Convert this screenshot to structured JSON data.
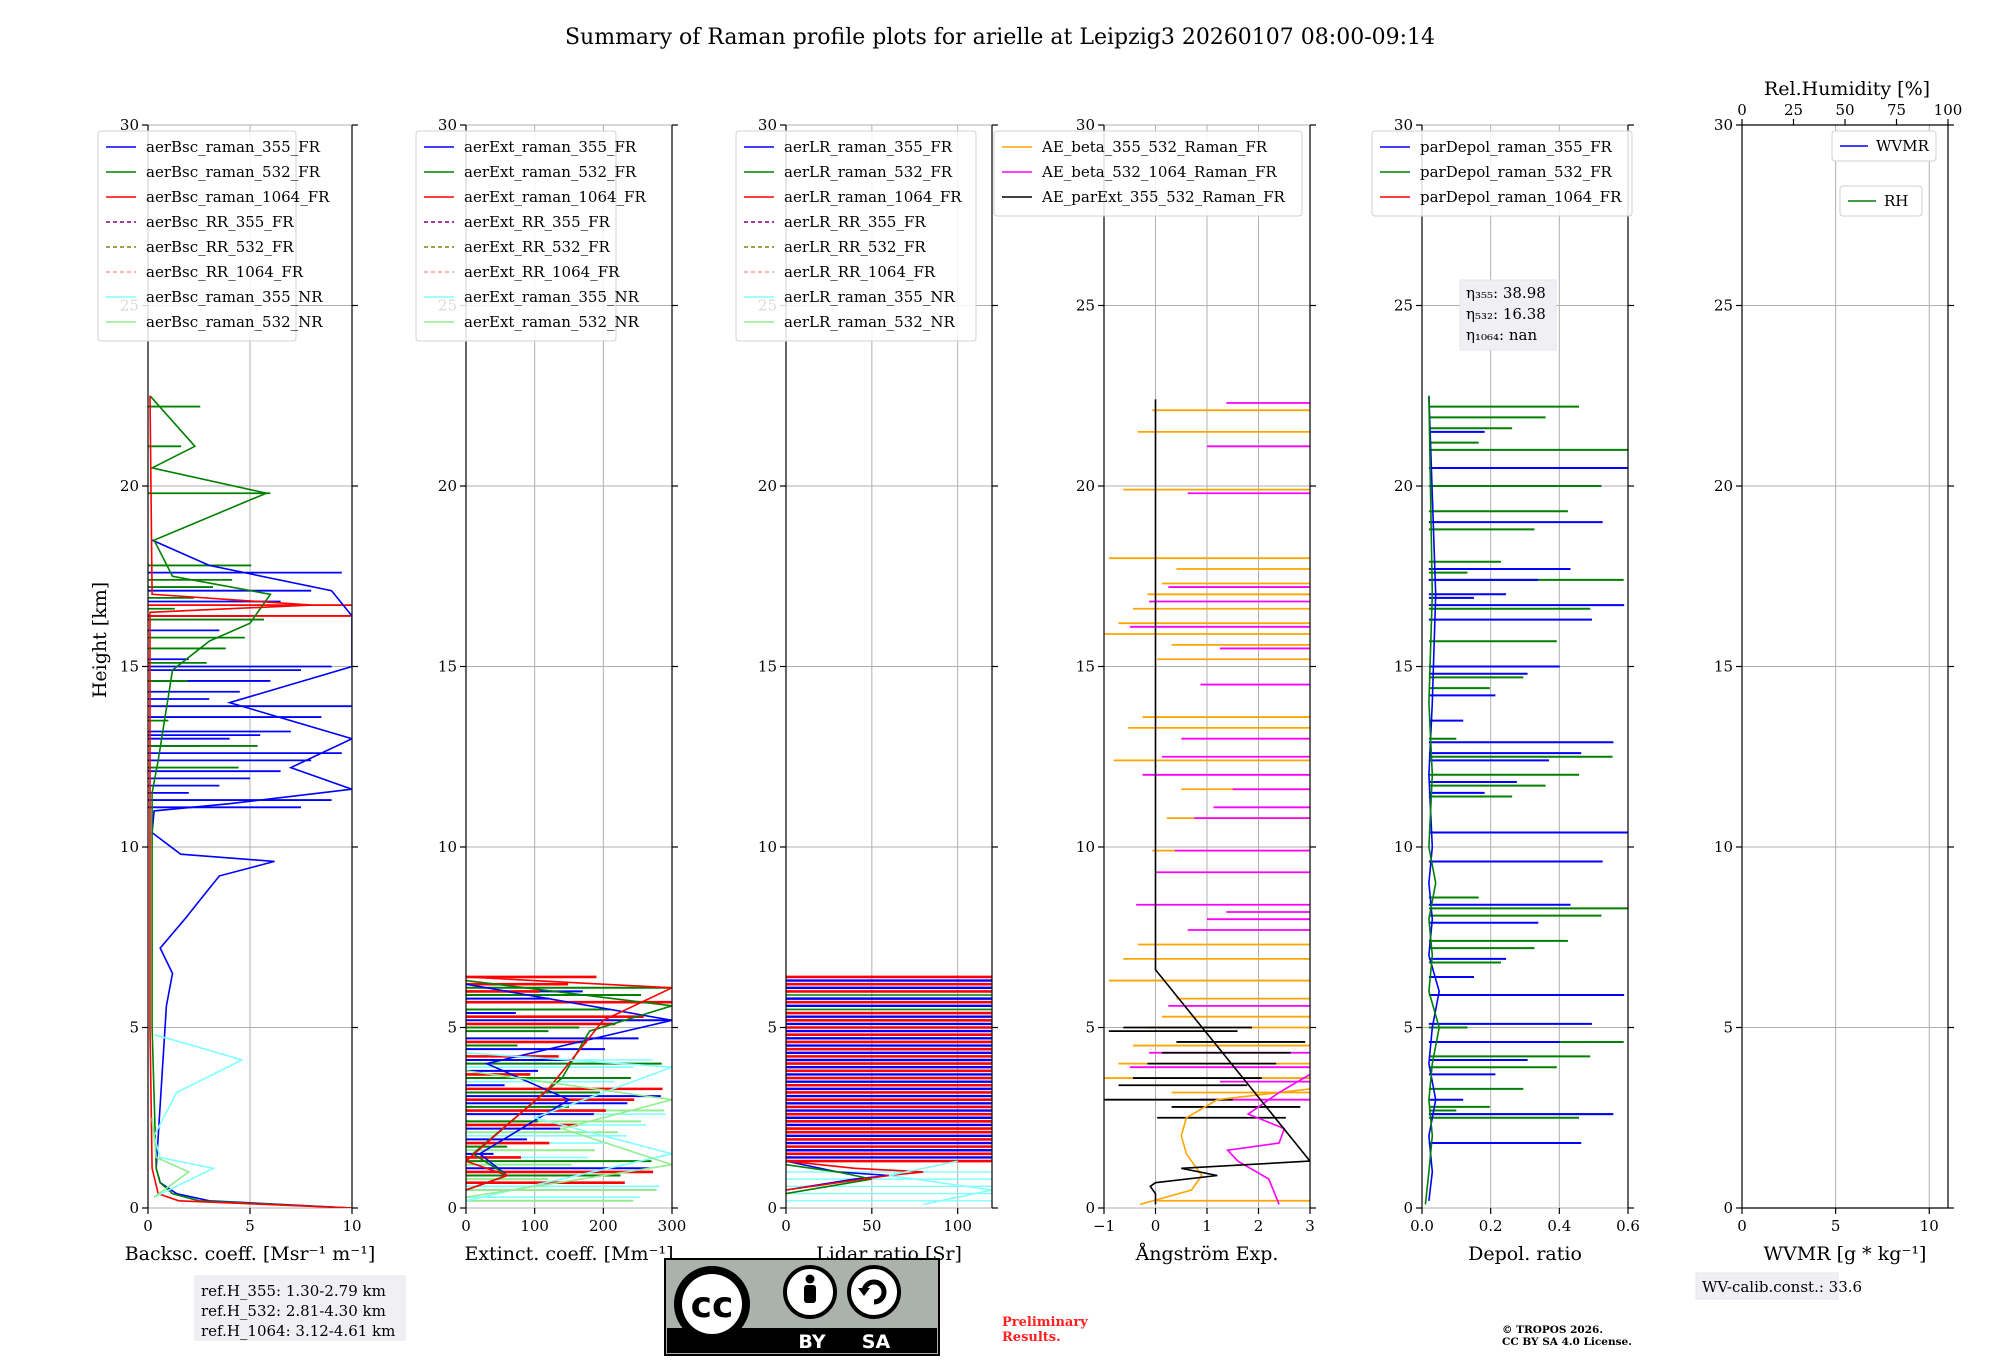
{
  "title": "Summary of Raman profile plots for arielle at Leipzig3 20260107 08:00-09:14",
  "ylabel": "Height [km]",
  "y_ticks": [
    "0",
    "5",
    "10",
    "15",
    "20",
    "25",
    "30"
  ],
  "colors": {
    "blue": "#0000ff",
    "green": "#008000",
    "red": "#ff0000",
    "purple": "#800080",
    "olive": "#808000",
    "salmon": "#ff9999",
    "cyan": "#80ffff",
    "lightgreen": "#90ee90",
    "orange": "#ffa500",
    "magenta": "#ff00ff",
    "black": "#000000"
  },
  "chart_data": [
    {
      "type": "line",
      "panel": "backscatter",
      "xlabel": "Backsc. coeff. [Msr⁻¹ m⁻¹]",
      "xlim": [
        0,
        10
      ],
      "ylim": [
        0,
        30
      ],
      "x_ticks": [
        "0",
        "5",
        "10"
      ],
      "legend": [
        "aerBsc_raman_355_FR",
        "aerBsc_raman_532_FR",
        "aerBsc_raman_1064_FR",
        "aerBsc_RR_355_FR",
        "aerBsc_RR_532_FR",
        "aerBsc_RR_1064_FR",
        "aerBsc_raman_355_NR",
        "aerBsc_raman_532_NR"
      ],
      "series": [
        {
          "name": "aerBsc_raman_355_FR",
          "x": [
            10,
            3,
            1.4,
            0.6,
            0.4,
            0.9,
            1.2,
            0.6,
            1.8,
            2.5,
            3.5,
            6.2,
            1.6,
            0.2,
            0.3,
            4,
            10,
            7,
            10,
            4,
            10,
            10,
            9,
            3,
            0.2
          ],
          "y": [
            0,
            0.2,
            0.4,
            0.7,
            1.1,
            5.6,
            6.5,
            7.2,
            8.0,
            8.5,
            9.2,
            9.6,
            9.8,
            10.4,
            11.0,
            11.2,
            11.6,
            12.2,
            13.0,
            14.0,
            15.0,
            16.4,
            17.1,
            17.8,
            18.5
          ]
        },
        {
          "name": "aerBsc_raman_532_FR",
          "x": [
            10,
            2.5,
            1.2,
            0.6,
            0.4,
            0.2,
            0.2,
            0.5,
            1.2,
            3,
            5,
            6,
            1.2,
            0.3,
            5.8,
            0.2,
            2.3,
            0.1
          ],
          "y": [
            0,
            0.2,
            0.4,
            0.7,
            1.1,
            5,
            11.5,
            12.4,
            14.9,
            15.7,
            16.2,
            17.0,
            17.5,
            18.5,
            19.8,
            20.5,
            21.1,
            22.5
          ]
        },
        {
          "name": "aerBsc_raman_1064_FR",
          "x": [
            10,
            1.5,
            0.5,
            0.2,
            0.1,
            0.1,
            8,
            0.2,
            0.1
          ],
          "y": [
            0,
            0.2,
            0.4,
            1.1,
            5,
            16.5,
            16.7,
            17.0,
            22.5
          ]
        },
        {
          "name": "aerBsc_raman_355_NR",
          "x": [
            0.3,
            3.2,
            0.6,
            0.3,
            1.4,
            4.6,
            2.2,
            0.3
          ],
          "y": [
            0.3,
            1.1,
            1.4,
            2.0,
            3.2,
            4.1,
            4.5,
            4.8
          ]
        },
        {
          "name": "aerBsc_raman_532_NR",
          "x": [
            0.3,
            2.0,
            0.4,
            0.2
          ],
          "y": [
            0.3,
            1.0,
            1.4,
            2.5
          ]
        }
      ]
    },
    {
      "type": "line",
      "panel": "extinction",
      "xlabel": "Extinct. coeff. [Mm⁻¹]",
      "xlim": [
        0,
        300
      ],
      "ylim": [
        0,
        30
      ],
      "x_ticks": [
        "0",
        "100",
        "200",
        "300"
      ],
      "legend": [
        "aerExt_raman_355_FR",
        "aerExt_raman_532_FR",
        "aerExt_raman_1064_FR",
        "aerExt_RR_355_FR",
        "aerExt_RR_532_FR",
        "aerExt_RR_1064_FR",
        "aerExt_raman_355_NR",
        "aerExt_raman_532_NR"
      ],
      "series": [
        {
          "name": "aerExt_raman_355_FR",
          "x": [
            0,
            60,
            20,
            150,
            30,
            300,
            0
          ],
          "y": [
            0.5,
            0.9,
            1.5,
            3.0,
            4.0,
            5.2,
            6.2
          ]
        },
        {
          "name": "aerExt_raman_532_FR",
          "x": [
            0,
            60,
            10,
            140,
            180,
            300,
            0
          ],
          "y": [
            0.5,
            0.9,
            1.5,
            3.6,
            4.9,
            5.6,
            6.3
          ]
        },
        {
          "name": "aerExt_raman_1064_FR",
          "x": [
            0,
            60,
            0,
            120,
            200,
            300,
            0
          ],
          "y": [
            0.5,
            0.9,
            1.3,
            3.3,
            5.2,
            6.1,
            6.4
          ]
        },
        {
          "name": "aerExt_raman_355_NR",
          "x": [
            0,
            300,
            100,
            300,
            0
          ],
          "y": [
            0.2,
            1.5,
            2.5,
            3.9,
            4.3
          ]
        },
        {
          "name": "aerExt_raman_532_NR",
          "x": [
            0,
            300,
            140,
            300,
            0
          ],
          "y": [
            0.3,
            1.2,
            2.2,
            3.0,
            3.8
          ]
        }
      ]
    },
    {
      "type": "line",
      "panel": "lidar_ratio",
      "xlabel": "Lidar ratio [Sr]",
      "xlim": [
        0,
        120
      ],
      "ylim": [
        0,
        30
      ],
      "x_ticks": [
        "0",
        "50",
        "100"
      ],
      "legend": [
        "aerLR_raman_355_FR",
        "aerLR_raman_532_FR",
        "aerLR_raman_1064_FR",
        "aerLR_RR_355_FR",
        "aerLR_RR_532_FR",
        "aerLR_RR_1064_FR",
        "aerLR_raman_355_NR",
        "aerLR_raman_532_NR"
      ],
      "series": [
        {
          "name": "aerLR_raman_355_FR",
          "x": [
            0,
            40,
            60,
            30,
            0
          ],
          "y": [
            0.5,
            0.8,
            0.9,
            1.0,
            1.3
          ]
        },
        {
          "name": "aerLR_raman_532_FR",
          "x": [
            0,
            50,
            30,
            0
          ],
          "y": [
            0.4,
            0.8,
            1.0,
            1.2
          ]
        },
        {
          "name": "aerLR_raman_1064_FR",
          "x": [
            0,
            60,
            80,
            40,
            0
          ],
          "y": [
            0.5,
            0.9,
            1.0,
            1.1,
            1.3
          ]
        },
        {
          "name": "aerLR_raman_355_NR",
          "x": [
            80,
            120,
            60,
            100
          ],
          "y": [
            0.1,
            0.5,
            0.9,
            1.3
          ]
        }
      ]
    },
    {
      "type": "line",
      "panel": "angstrom",
      "xlabel": "Ångström Exp.",
      "xlim": [
        -1,
        3
      ],
      "ylim": [
        0,
        30
      ],
      "x_ticks": [
        "−1",
        "0",
        "1",
        "2",
        "3"
      ],
      "legend": [
        "AE_beta_355_532_Raman_FR",
        "AE_beta_532_1064_Raman_FR",
        "AE_parExt_355_532_Raman_FR"
      ],
      "series": [
        {
          "name": "AE_beta_355_532_Raman_FR",
          "x": [
            -0.3,
            0.7,
            0.9,
            0.6,
            0.5,
            0.6,
            1.2,
            3
          ],
          "y": [
            0.1,
            0.5,
            0.9,
            1.5,
            2.0,
            2.5,
            3.0,
            3.3
          ]
        },
        {
          "name": "AE_beta_532_1064_Raman_FR",
          "x": [
            2.4,
            2.2,
            1.6,
            1.4,
            2.4,
            2.5,
            1.8,
            2.4,
            3
          ],
          "y": [
            0.1,
            0.8,
            1.3,
            1.6,
            1.8,
            2.2,
            2.6,
            3.2,
            3.7
          ]
        },
        {
          "name": "AE_parExt_355_532_Raman_FR",
          "x": [
            0,
            0,
            -0.1,
            0,
            1.2,
            0.5,
            3,
            0,
            0
          ],
          "y": [
            0.1,
            0.4,
            0.6,
            0.7,
            0.9,
            1.1,
            1.3,
            6.6,
            22.4
          ]
        }
      ]
    },
    {
      "type": "line",
      "panel": "depolarization",
      "xlabel": "Depol. ratio",
      "xlim": [
        0,
        0.6
      ],
      "ylim": [
        0,
        30
      ],
      "x_ticks": [
        "0.0",
        "0.2",
        "0.4",
        "0.6"
      ],
      "legend": [
        "parDepol_raman_355_FR",
        "parDepol_raman_532_FR",
        "parDepol_raman_1064_FR"
      ],
      "annotation": [
        "η₃₅₅: 38.98",
        "η₅₃₂: 16.38",
        "η₁₀₆₄: nan"
      ],
      "series": [
        {
          "name": "parDepol_raman_355_FR",
          "x": [
            0.02,
            0.03,
            0.02,
            0.04,
            0.02,
            0.03,
            0.05,
            0.02,
            0.03,
            0.02,
            0.03,
            0.02,
            0.03,
            0.04,
            0.02
          ],
          "y": [
            0.2,
            1.0,
            2.0,
            3.0,
            4.0,
            5.0,
            6.0,
            7.0,
            8.0,
            9.0,
            10.0,
            12.0,
            14.0,
            17.0,
            22.5
          ]
        },
        {
          "name": "parDepol_raman_532_FR",
          "x": [
            0.01,
            0.02,
            0.03,
            0.02,
            0.03,
            0.05,
            0.02,
            0.03,
            0.02,
            0.04,
            0.02,
            0.03,
            0.02,
            0.03,
            0.02
          ],
          "y": [
            0.1,
            1.0,
            2.0,
            3.0,
            4.0,
            5.0,
            6.0,
            7.0,
            8.0,
            9.0,
            10.0,
            12.0,
            14.0,
            17.0,
            22.5
          ]
        }
      ]
    },
    {
      "type": "line",
      "panel": "wvmr",
      "xlabel": "WVMR [g * kg⁻¹]",
      "top_xlabel": "Rel.Humidity [%]",
      "xlim": [
        0,
        11
      ],
      "ylim": [
        0,
        30
      ],
      "x_ticks": [
        "0",
        "5",
        "10"
      ],
      "top_ticks": [
        "0",
        "25",
        "50",
        "75",
        "100"
      ],
      "legend": [
        "WVMR",
        "RH"
      ],
      "series": []
    }
  ],
  "spikes": {
    "bsc_355": [
      11.1,
      11.3,
      11.5,
      11.7,
      11.9,
      12.1,
      12.4,
      12.6,
      12.8,
      13.0,
      13.1,
      13.2,
      13.6,
      13.9,
      14.1,
      14.3,
      14.6,
      14.9,
      15.0,
      15.2,
      16.0,
      16.4,
      16.8,
      17.1,
      17.6
    ],
    "bsc_532": [
      12.2,
      12.8,
      13.5,
      14.6,
      15.1,
      15.5,
      15.8,
      16.3,
      16.6,
      16.9,
      17.2,
      17.4,
      17.8,
      19.8,
      21.1,
      22.2
    ],
    "bsc_1064": [
      16.4,
      16.7
    ],
    "ext_355": [
      0.9,
      1.1,
      1.5,
      1.9,
      2.2,
      2.6,
      2.9,
      3.1,
      3.4,
      3.8,
      4.1,
      4.4,
      4.7,
      5.2,
      5.4,
      5.8,
      6.0
    ],
    "ext_532": [
      0.9,
      1.3,
      1.7,
      2.4,
      2.8,
      3.2,
      3.6,
      4.0,
      4.5,
      4.9,
      5.0,
      5.5,
      5.9,
      6.1,
      6.2
    ],
    "ext_1064": [
      0.7,
      1.0,
      1.4,
      1.8,
      2.3,
      2.7,
      3.0,
      3.3,
      3.7,
      4.2,
      4.6,
      5.1,
      5.3,
      5.7,
      6.0,
      6.2,
      6.4
    ],
    "ext_nr_355": [
      0.3,
      0.6,
      1.0,
      1.4,
      1.8,
      2.0,
      2.3,
      2.6,
      2.9,
      3.2,
      3.5,
      3.9,
      4.1
    ],
    "ext_nr_532": [
      0.2,
      0.5,
      0.8,
      1.2,
      1.6,
      2.1,
      2.4,
      2.7,
      3.0,
      3.3,
      3.6
    ],
    "lr_355": [
      1.4,
      1.6,
      1.8,
      2.0,
      2.3,
      2.5,
      2.7,
      2.9,
      3.1,
      3.3,
      3.5,
      3.7,
      3.9,
      4.1,
      4.3,
      4.5,
      4.7,
      4.9,
      5.1,
      5.3,
      5.6,
      5.8,
      6.1,
      6.3
    ],
    "lr_532": [
      1.5,
      1.7,
      1.9,
      2.1,
      2.4,
      2.6,
      2.8,
      3.0,
      3.2,
      3.4,
      3.6,
      3.8,
      4.0,
      4.2,
      4.4,
      4.6,
      4.8,
      5.0,
      5.2,
      5.5,
      5.9,
      6.2
    ],
    "lr_1064": [
      1.3,
      1.5,
      1.7,
      1.9,
      2.1,
      2.2,
      2.4,
      2.6,
      2.8,
      3.0,
      3.2,
      3.4,
      3.6,
      3.8,
      4.0,
      4.2,
      4.4,
      4.6,
      4.8,
      5.0,
      5.2,
      5.4,
      5.7,
      6.0,
      6.2,
      6.4
    ],
    "lr_nr": [
      0.2,
      0.4,
      0.6,
      0.8,
      1.0
    ],
    "ae_355_532": [
      0.2,
      3.2,
      3.6,
      4.0,
      4.5,
      5.0,
      5.3,
      5.8,
      6.3,
      6.9,
      7.3,
      9.9,
      10.8,
      11.6,
      12.4,
      13.3,
      13.6,
      15.2,
      15.6,
      15.9,
      16.2,
      16.6,
      17.0,
      17.3,
      17.7,
      18.0,
      19.9,
      21.5,
      22.1
    ],
    "ae_532_1064": [
      3.0,
      3.5,
      3.9,
      4.3,
      5.6,
      7.7,
      8.0,
      8.2,
      8.4,
      9.3,
      9.9,
      10.8,
      11.1,
      11.6,
      12.0,
      12.5,
      13.0,
      14.5,
      15.5,
      16.1,
      16.8,
      17.2,
      19.8,
      21.1,
      22.3
    ],
    "ae_ext": [
      2.5,
      2.8,
      3.0,
      3.4,
      3.6,
      4.0,
      4.3,
      4.6,
      4.9,
      5.0
    ],
    "dep_355": [
      1.8,
      2.6,
      3.0,
      3.7,
      4.1,
      4.6,
      5.1,
      5.9,
      6.4,
      6.9,
      7.9,
      8.4,
      9.6,
      10.4,
      11.5,
      11.8,
      12.4,
      12.6,
      12.9,
      13.5,
      14.2,
      14.8,
      15.0,
      16.3,
      16.7,
      16.9,
      17.0,
      17.4,
      17.7,
      19.0,
      20.5,
      21.5
    ],
    "dep_532": [
      2.5,
      2.6,
      2.7,
      2.8,
      3.3,
      3.9,
      4.2,
      4.6,
      5.0,
      6.8,
      7.2,
      7.4,
      8.1,
      8.3,
      8.6,
      11.4,
      11.7,
      12.0,
      12.5,
      13.0,
      14.4,
      14.7,
      15.7,
      16.6,
      17.4,
      17.6,
      17.9,
      18.8,
      19.3,
      20.0,
      21.0,
      21.2,
      21.6,
      21.9,
      22.2
    ]
  },
  "footer": {
    "refH": [
      "ref.H_355: 1.30-2.79 km",
      "ref.H_532: 2.81-4.30 km",
      "ref.H_1064: 3.12-4.61 km"
    ],
    "wv_calib": "WV-calib.const.: 33.6",
    "preliminary": [
      "Preliminary",
      "Results."
    ],
    "copyright": [
      "© TROPOS 2026.",
      "CC BY SA 4.0 License."
    ],
    "cc_logo_text": [
      "cc",
      "BY",
      "SA"
    ]
  }
}
